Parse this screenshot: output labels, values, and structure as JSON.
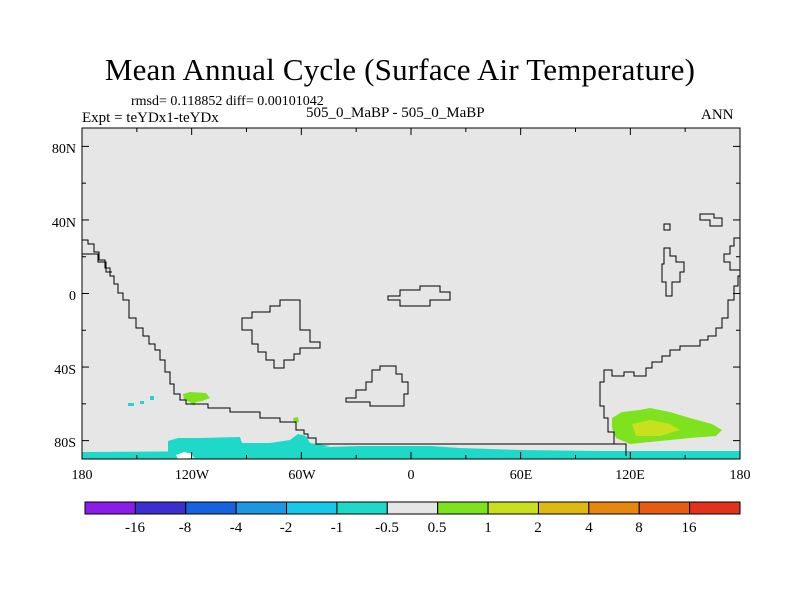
{
  "header": {
    "title": "Mean Annual Cycle (Surface Air Temperature)",
    "stats": "rmsd= 0.118852 diff= 0.00101042",
    "expt": "Expt = teYDx1-teYDx",
    "subtitle": "505_0_MaBP - 505_0_MaBP",
    "season": "ANN"
  },
  "chart_data": {
    "type": "heatmap",
    "title": "Mean Annual Cycle (Surface Air Temperature)",
    "xlabel": "",
    "ylabel": "",
    "xlim": [
      -180,
      180
    ],
    "ylim": [
      -90,
      90
    ],
    "x_ticks": [
      "180",
      "120W",
      "60W",
      "0",
      "60E",
      "120E",
      "180"
    ],
    "y_ticks": [
      "80N",
      "40N",
      "0",
      "40S",
      "80S"
    ],
    "background_value_range": [
      -0.5,
      0.5
    ],
    "colorbar": {
      "labels": [
        "-16",
        "-8",
        "-4",
        "-2",
        "-1",
        "-0.5",
        "0.5",
        "1",
        "2",
        "4",
        "8",
        "16"
      ],
      "colors": [
        "#8a1ee8",
        "#3b2fcf",
        "#1763df",
        "#1c98e0",
        "#16c8ea",
        "#1ed9c8",
        "#e6e6e6",
        "#7ee21f",
        "#c8e01e",
        "#e0b812",
        "#e6880f",
        "#e65c12",
        "#e0341a"
      ]
    },
    "anomalies": [
      {
        "name": "Antarctic coastal band",
        "lon_range": [
          -180,
          180
        ],
        "lat_range": [
          -90,
          -84
        ],
        "category": "-1 to -0.5"
      },
      {
        "name": "Antarctic inland patch 120W-60W",
        "lon_range": [
          -123,
          -52
        ],
        "lat_range": [
          -85,
          -78
        ],
        "category": "-1 to -0.5"
      },
      {
        "name": "Bellingshausen patch",
        "lon_range": [
          -123,
          -113
        ],
        "lat_range": [
          -60,
          -53
        ],
        "category": "0.5 to 1"
      },
      {
        "name": "Small patch near 60W",
        "lon_range": [
          -64,
          -62
        ],
        "lat_range": [
          -68,
          -64
        ],
        "category": "0.5 to 1"
      },
      {
        "name": "Small cyan patches 140W",
        "lon_range": [
          -150,
          -138
        ],
        "lat_range": [
          -62,
          -56
        ],
        "category": "-1 to -0.5"
      },
      {
        "name": "Southern Ocean south of Australia",
        "lon_range": [
          110,
          170
        ],
        "lat_range": [
          -84,
          -65
        ],
        "category": "0.5 to 1"
      },
      {
        "name": "Core south of Australia",
        "lon_range": [
          120,
          150
        ],
        "lat_range": [
          -78,
          -70
        ],
        "category": "1 to 2"
      }
    ]
  }
}
